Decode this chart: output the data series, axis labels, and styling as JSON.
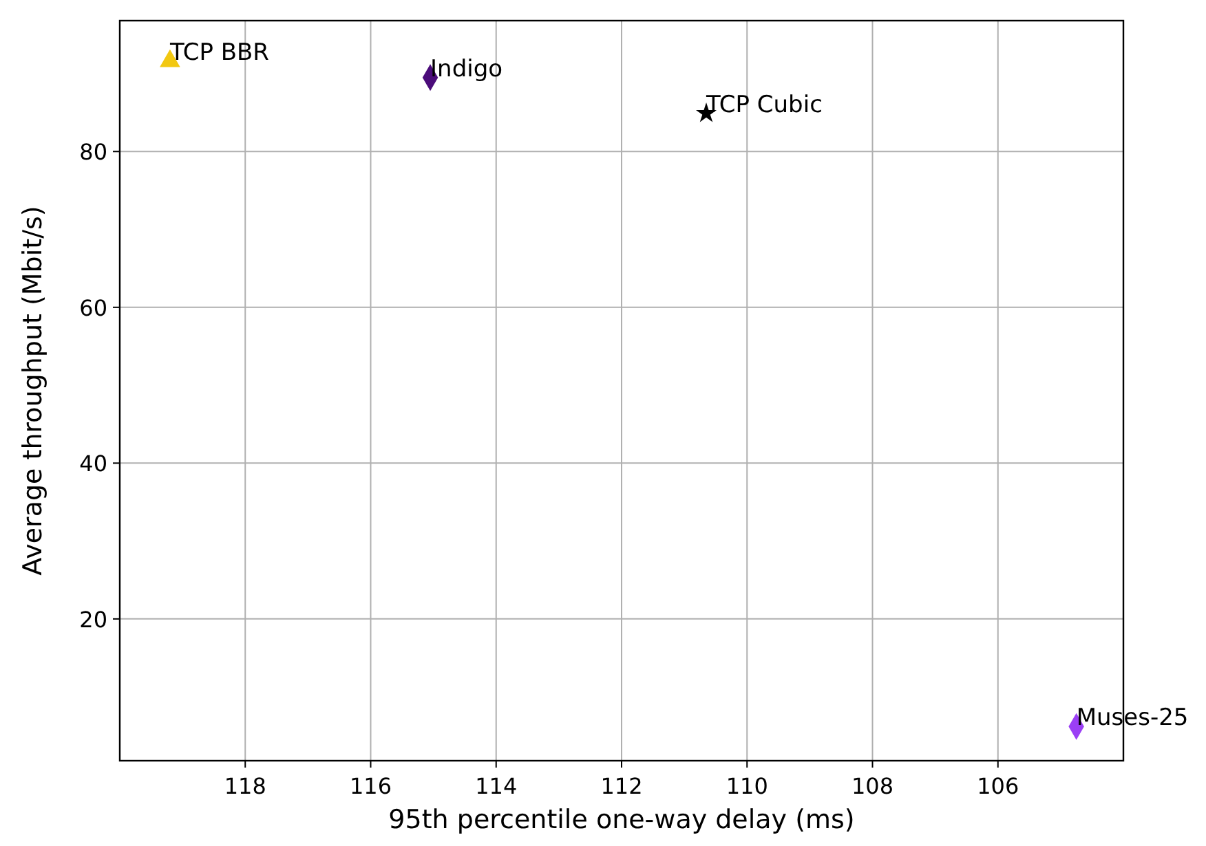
{
  "chart_data": {
    "type": "scatter",
    "xlabel": "95th percentile one-way delay (ms)",
    "ylabel": "Average throughput (Mbit/s)",
    "xlim": [
      120,
      104
    ],
    "xticks": [
      118,
      116,
      114,
      112,
      110,
      108,
      106
    ],
    "ylim": [
      1.8,
      96.8
    ],
    "yticks": [
      20,
      40,
      60,
      80
    ],
    "grid": true,
    "series": [
      {
        "name": "TCP BBR",
        "color": "#f2c811",
        "marker": "triangle",
        "x": [
          119.2
        ],
        "values": [
          91.6
        ]
      },
      {
        "name": "Indigo",
        "color": "#4b0c7a",
        "marker": "diamond",
        "x": [
          115.05
        ],
        "values": [
          89.5
        ]
      },
      {
        "name": "TCP Cubic",
        "color": "#000000",
        "marker": "star",
        "x": [
          110.65
        ],
        "values": [
          84.9
        ]
      },
      {
        "name": "Muses-25",
        "color": "#9b3ff5",
        "marker": "diamond",
        "x": [
          104.75
        ],
        "values": [
          6.2
        ]
      }
    ]
  }
}
